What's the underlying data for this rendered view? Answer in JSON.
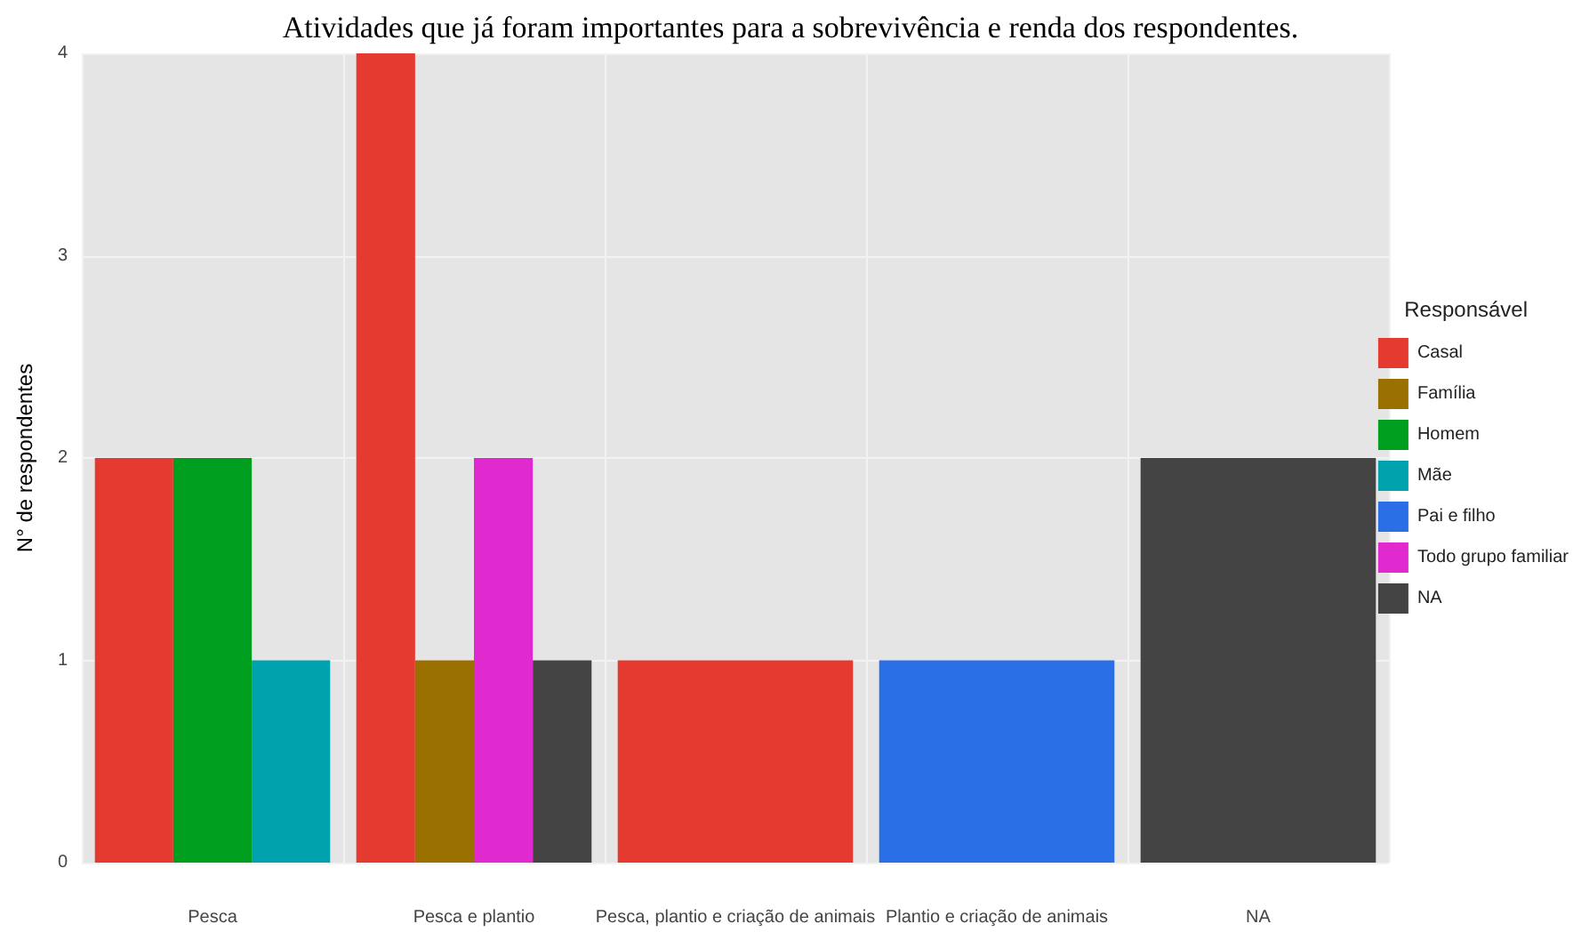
{
  "chart_data": {
    "type": "bar",
    "title": "Atividades que já foram importantes para a sobrevivência e renda dos respondentes.",
    "ylabel": "N° de respondentes",
    "legend_title": "Responsável",
    "categories": [
      "Pesca",
      "Pesca e plantio",
      "Pesca, plantio e criação de animais",
      "Plantio e criação de animais",
      "NA"
    ],
    "series": [
      {
        "name": "Casal",
        "color": "#e53a2f",
        "values": [
          2,
          4,
          1,
          null,
          null
        ]
      },
      {
        "name": "Família",
        "color": "#9a7000",
        "values": [
          null,
          1,
          null,
          null,
          null
        ]
      },
      {
        "name": "Homem",
        "color": "#009e1e",
        "values": [
          2,
          null,
          null,
          null,
          null
        ]
      },
      {
        "name": "Mãe",
        "color": "#00a3ad",
        "values": [
          1,
          null,
          null,
          null,
          null
        ]
      },
      {
        "name": "Pai e filho",
        "color": "#2a6fe6",
        "values": [
          null,
          null,
          null,
          1,
          null
        ]
      },
      {
        "name": "Todo grupo familiar",
        "color": "#e02ad0",
        "values": [
          null,
          2,
          null,
          null,
          null
        ]
      },
      {
        "name": "NA",
        "color": "#444444",
        "values": [
          null,
          1,
          null,
          null,
          2
        ]
      }
    ],
    "ylim": [
      0,
      4
    ],
    "yticks": [
      0,
      1,
      2,
      3,
      4
    ],
    "grid": true,
    "legend": "right"
  }
}
